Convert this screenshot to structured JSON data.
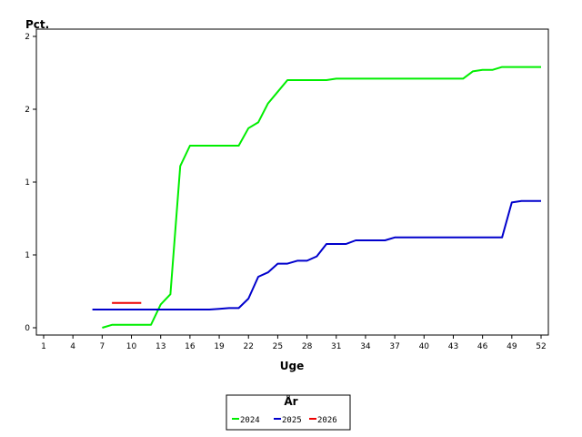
{
  "chart_data": {
    "type": "line",
    "title": "",
    "xlabel": "Uge",
    "ylabel": "Pct.",
    "xlim": [
      1,
      52
    ],
    "ylim": [
      0,
      2
    ],
    "x_ticks": [
      1,
      4,
      7,
      10,
      13,
      16,
      19,
      22,
      25,
      28,
      31,
      34,
      37,
      40,
      43,
      46,
      49,
      52
    ],
    "y_ticks": [
      {
        "value": 0,
        "label": "0"
      },
      {
        "value": 0.5,
        "label": "1"
      },
      {
        "value": 1.0,
        "label": "1"
      },
      {
        "value": 1.5,
        "label": "2"
      },
      {
        "value": 2.0,
        "label": "2"
      }
    ],
    "grid": false,
    "legend": {
      "title": "År",
      "position": "bottom-center"
    },
    "series": [
      {
        "name": "2024",
        "color": "#00ee00",
        "x": [
          7,
          8,
          9,
          10,
          11,
          12,
          13,
          14,
          15,
          16,
          17,
          18,
          19,
          20,
          21,
          22,
          23,
          24,
          25,
          26,
          27,
          28,
          29,
          30,
          31,
          32,
          33,
          34,
          35,
          36,
          37,
          38,
          39,
          40,
          41,
          42,
          43,
          44,
          45,
          46,
          47,
          48,
          49,
          50,
          51,
          52
        ],
        "y": [
          0.0,
          0.02,
          0.02,
          0.02,
          0.02,
          0.02,
          0.16,
          0.23,
          1.11,
          1.25,
          1.25,
          1.25,
          1.25,
          1.25,
          1.25,
          1.37,
          1.41,
          1.54,
          1.62,
          1.7,
          1.7,
          1.7,
          1.7,
          1.7,
          1.71,
          1.71,
          1.71,
          1.71,
          1.71,
          1.71,
          1.71,
          1.71,
          1.71,
          1.71,
          1.71,
          1.71,
          1.71,
          1.71,
          1.76,
          1.77,
          1.77,
          1.79,
          1.79,
          1.79,
          1.79,
          1.79
        ]
      },
      {
        "name": "2025",
        "color": "#0000cc",
        "x": [
          6,
          7,
          8,
          9,
          10,
          11,
          12,
          13,
          14,
          15,
          16,
          17,
          18,
          19,
          20,
          21,
          22,
          23,
          24,
          25,
          26,
          27,
          28,
          29,
          30,
          31,
          32,
          33,
          34,
          35,
          36,
          37,
          38,
          39,
          40,
          41,
          42,
          43,
          44,
          45,
          46,
          47,
          48,
          49,
          50,
          51,
          52
        ],
        "y": [
          0.125,
          0.125,
          0.125,
          0.125,
          0.125,
          0.125,
          0.125,
          0.125,
          0.125,
          0.125,
          0.125,
          0.125,
          0.125,
          0.13,
          0.135,
          0.135,
          0.2,
          0.35,
          0.38,
          0.44,
          0.44,
          0.46,
          0.46,
          0.49,
          0.575,
          0.575,
          0.575,
          0.6,
          0.6,
          0.6,
          0.6,
          0.62,
          0.62,
          0.62,
          0.62,
          0.62,
          0.62,
          0.62,
          0.62,
          0.62,
          0.62,
          0.62,
          0.62,
          0.86,
          0.87,
          0.87,
          0.87
        ]
      },
      {
        "name": "2026",
        "color": "#ee0000",
        "x": [
          8,
          9,
          10,
          11
        ],
        "y": [
          0.17,
          0.17,
          0.17,
          0.17
        ]
      }
    ]
  }
}
